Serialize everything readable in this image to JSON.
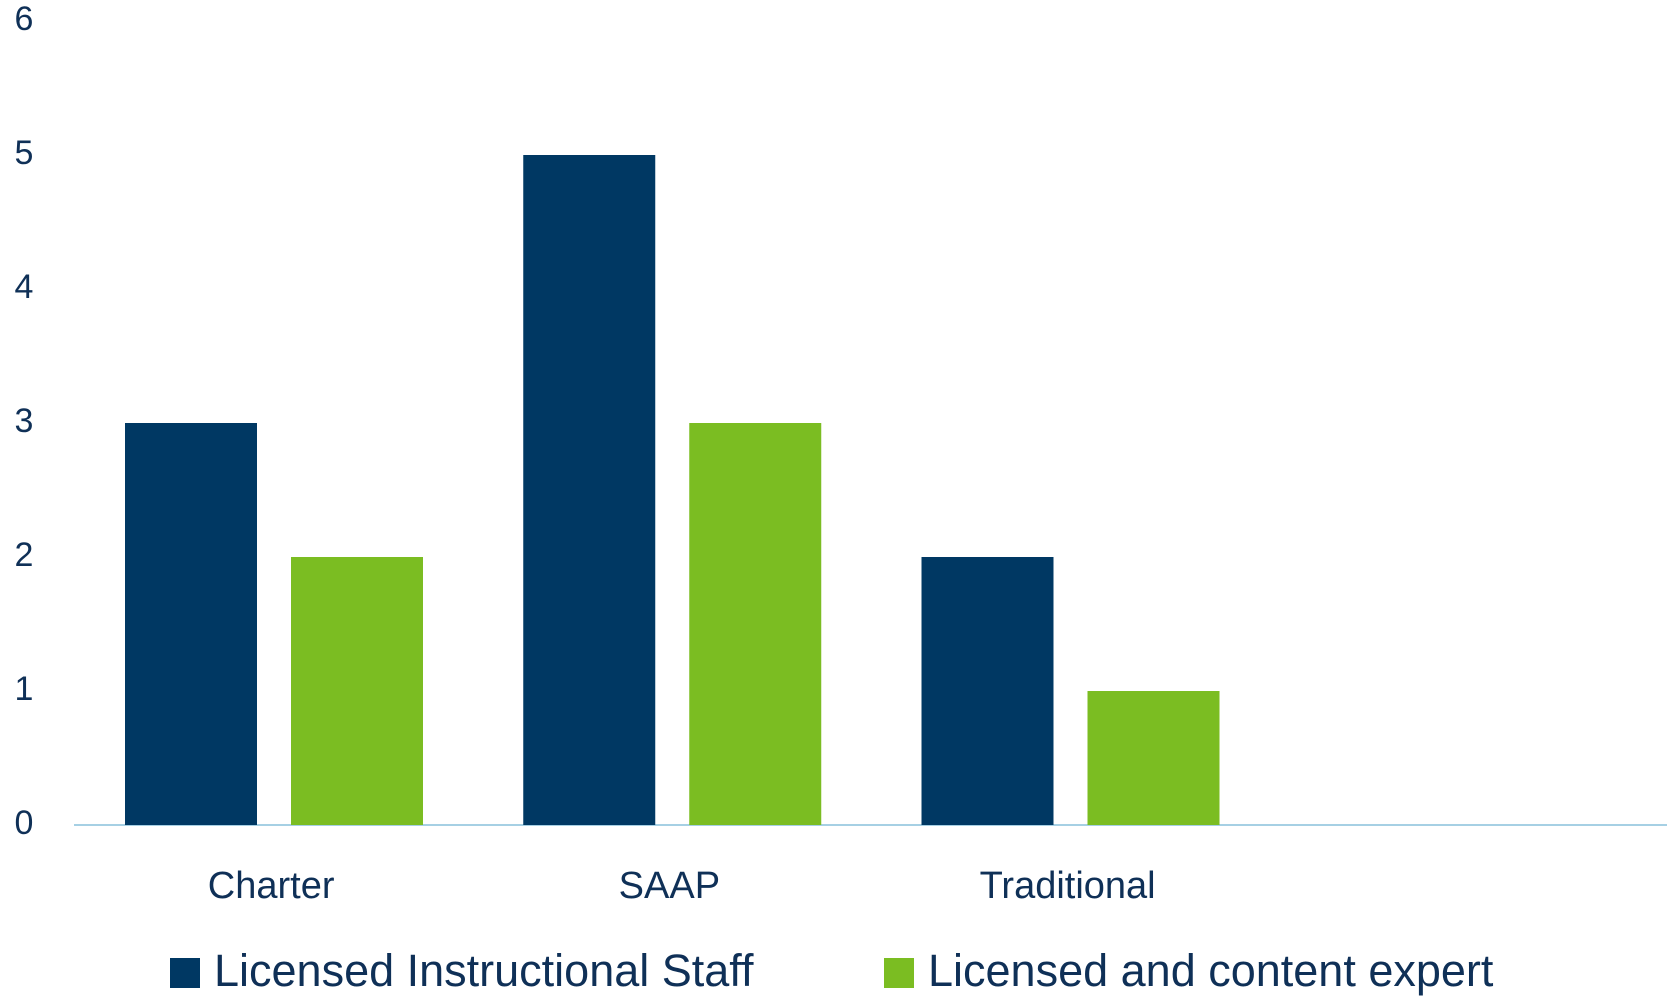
{
  "chart_data": {
    "type": "bar",
    "categories": [
      "Charter",
      "SAAP",
      "Traditional",
      null
    ],
    "series": [
      {
        "name": "Licensed Instructional Staff",
        "color": "#003863",
        "values": [
          3,
          5,
          2,
          null
        ]
      },
      {
        "name": "Licensed and content expert",
        "color": "#7bbd22",
        "values": [
          2,
          3,
          1,
          null
        ]
      }
    ],
    "ylim": [
      0,
      6
    ],
    "yticks": [
      0,
      1,
      2,
      3,
      4,
      5,
      6
    ],
    "grid": false,
    "legend": "bottom"
  }
}
